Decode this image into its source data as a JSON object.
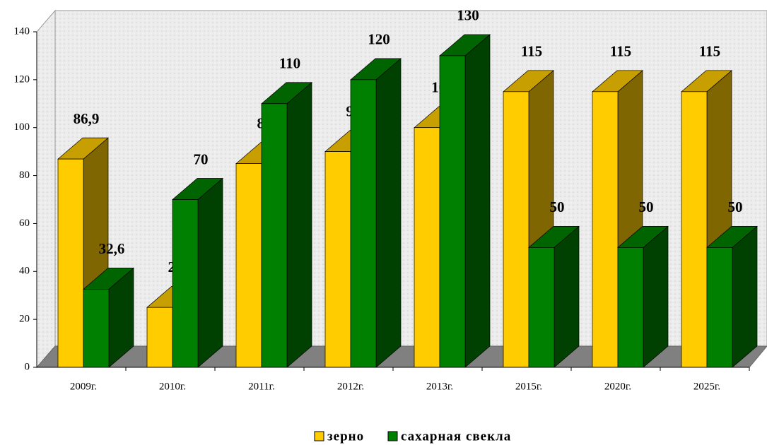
{
  "chart_data": {
    "type": "bar3d",
    "categories": [
      "2009г.",
      "2010г.",
      "2011г.",
      "2012г.",
      "2013г.",
      "2015г.",
      "2020г.",
      "2025г."
    ],
    "series": [
      {
        "name": "зерно",
        "color": "#ffcc00",
        "values": [
          86.9,
          25,
          85,
          90,
          100,
          115,
          115,
          115
        ],
        "value_labels": [
          "86,9",
          "25",
          "85",
          "90",
          "100",
          "115",
          "115",
          "115"
        ]
      },
      {
        "name": "сахарная свекла",
        "color": "#008000",
        "values": [
          32.6,
          70,
          110,
          120,
          130,
          50,
          50,
          50
        ],
        "value_labels": [
          "32,6",
          "70",
          "110",
          "120",
          "130",
          "50",
          "50",
          "50"
        ]
      }
    ],
    "ylim": [
      0,
      140
    ],
    "yticks": [
      0,
      20,
      40,
      60,
      80,
      100,
      120,
      140
    ]
  }
}
